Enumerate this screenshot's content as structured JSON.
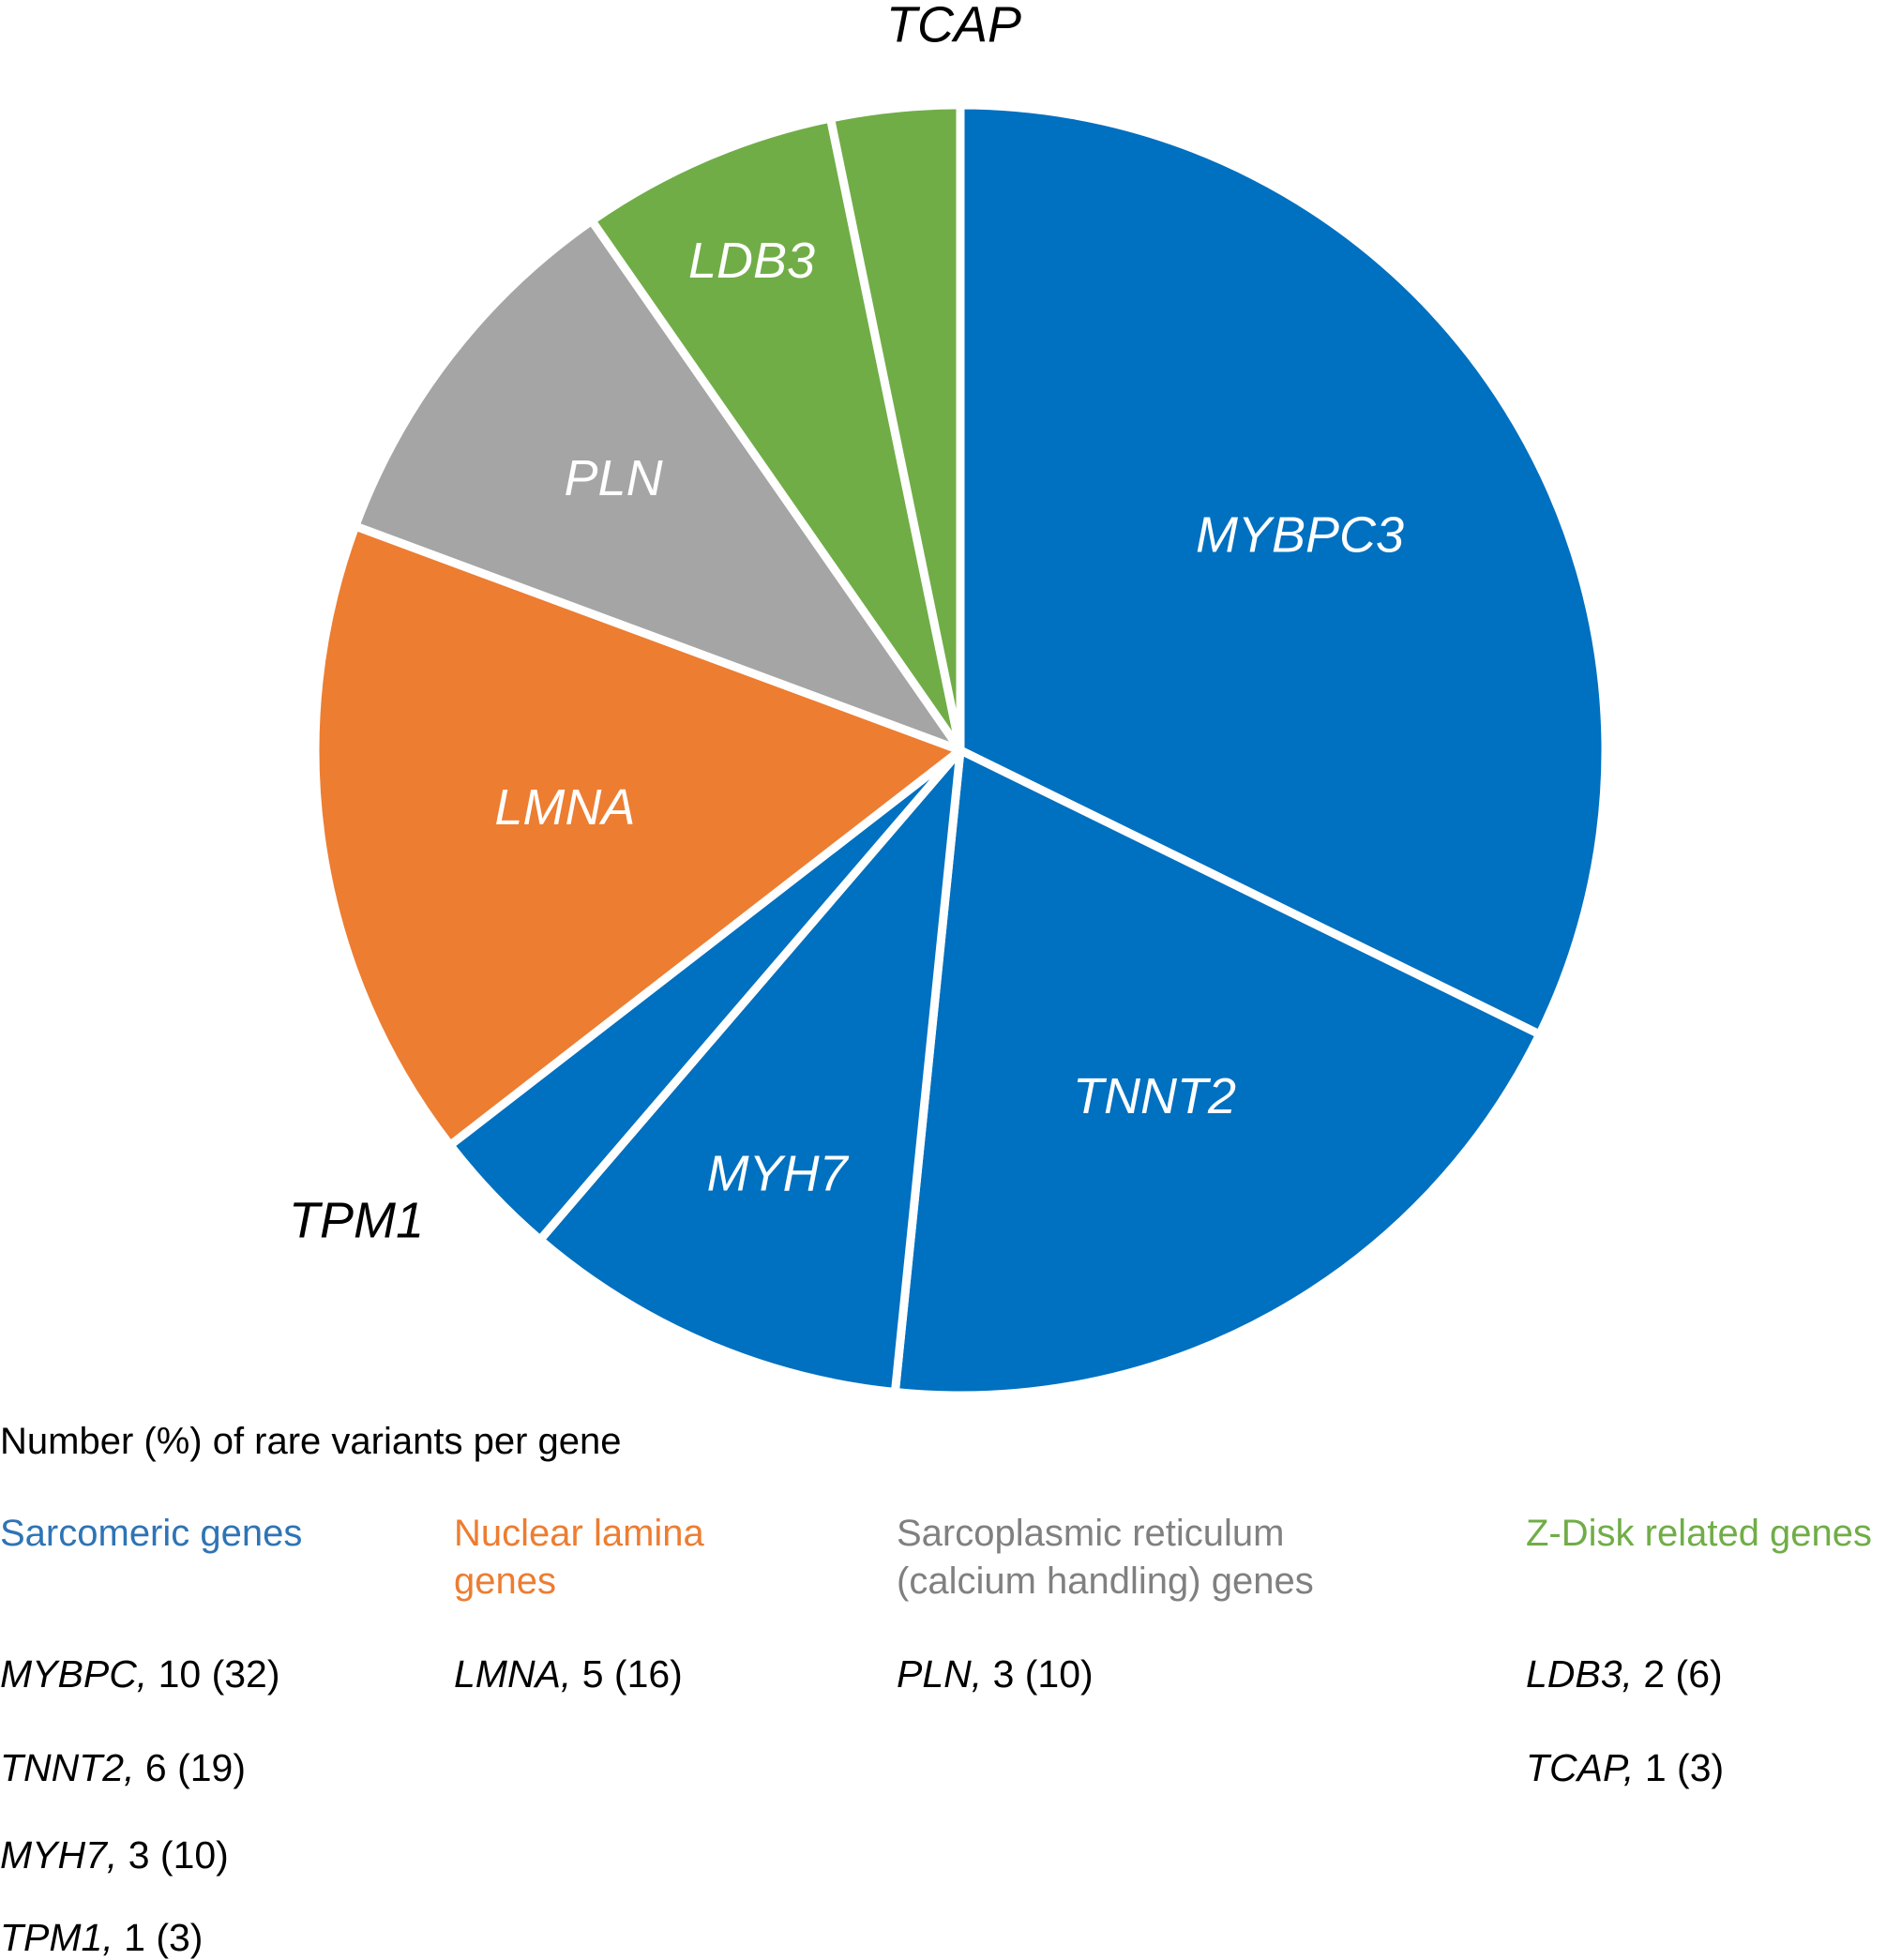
{
  "chart_data": {
    "type": "pie",
    "slices": [
      {
        "label": "MYBPC3",
        "value": 10,
        "color": "#0070c0",
        "label_color": "#ffffff"
      },
      {
        "label": "TNNT2",
        "value": 6,
        "color": "#0070c0",
        "label_color": "#ffffff"
      },
      {
        "label": "MYH7",
        "value": 3,
        "color": "#0070c0",
        "label_color": "#ffffff"
      },
      {
        "label": "TPM1",
        "value": 1,
        "color": "#0070c0",
        "label_color": "#000000"
      },
      {
        "label": "LMNA",
        "value": 5,
        "color": "#ed7d31",
        "label_color": "#ffffff"
      },
      {
        "label": "PLN",
        "value": 3,
        "color": "#a5a5a5",
        "label_color": "#ffffff"
      },
      {
        "label": "LDB3",
        "value": 2,
        "color": "#70ad47",
        "label_color": "#ffffff"
      },
      {
        "label": "TCAP",
        "value": 1,
        "color": "#70ad47",
        "label_color": "#000000"
      }
    ]
  },
  "legend": {
    "title": "Number (%) of rare variants per gene",
    "groups": [
      {
        "heading": [
          "Sarcomeric genes"
        ],
        "color": "#2e74b5",
        "entries": [
          {
            "gene": "MYBPC,",
            "value": "10 (32)"
          },
          {
            "gene": "TNNT2,",
            "value": "6 (19)"
          },
          {
            "gene": "MYH7,",
            "value": "3 (10)"
          },
          {
            "gene": "TPM1,",
            "value": "1 (3)"
          }
        ]
      },
      {
        "heading": [
          "Nuclear lamina",
          "genes"
        ],
        "color": "#ed7d31",
        "entries": [
          {
            "gene": "LMNA,",
            "value": "5 (16)"
          }
        ]
      },
      {
        "heading": [
          "Sarcoplasmic reticulum",
          "(calcium handling) genes"
        ],
        "color": "#808080",
        "entries": [
          {
            "gene": "PLN,",
            "value": "3 (10)"
          }
        ]
      },
      {
        "heading": [
          "Z-Disk related genes"
        ],
        "color": "#70ad47",
        "entries": [
          {
            "gene": "LDB3,",
            "value": "2 (6)"
          },
          {
            "gene": "TCAP,",
            "value": "1 (3)"
          }
        ]
      }
    ]
  }
}
